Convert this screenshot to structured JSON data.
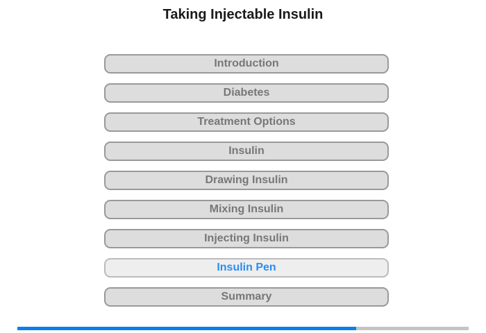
{
  "title": "Taking Injectable Insulin",
  "menu": {
    "items": [
      {
        "label": "Introduction",
        "current": false
      },
      {
        "label": "Diabetes",
        "current": false
      },
      {
        "label": "Treatment Options",
        "current": false
      },
      {
        "label": "Insulin",
        "current": false
      },
      {
        "label": "Drawing Insulin",
        "current": false
      },
      {
        "label": "Mixing Insulin",
        "current": false
      },
      {
        "label": "Injecting Insulin",
        "current": false
      },
      {
        "label": "Insulin Pen",
        "current": true
      },
      {
        "label": "Summary",
        "current": false
      }
    ]
  },
  "progress": {
    "fraction": 0.75,
    "fill_color": "#0a7ff0",
    "track_color": "#c4c4c4"
  },
  "colors": {
    "current_item_text": "#2b8cf3",
    "item_text": "#777777"
  }
}
